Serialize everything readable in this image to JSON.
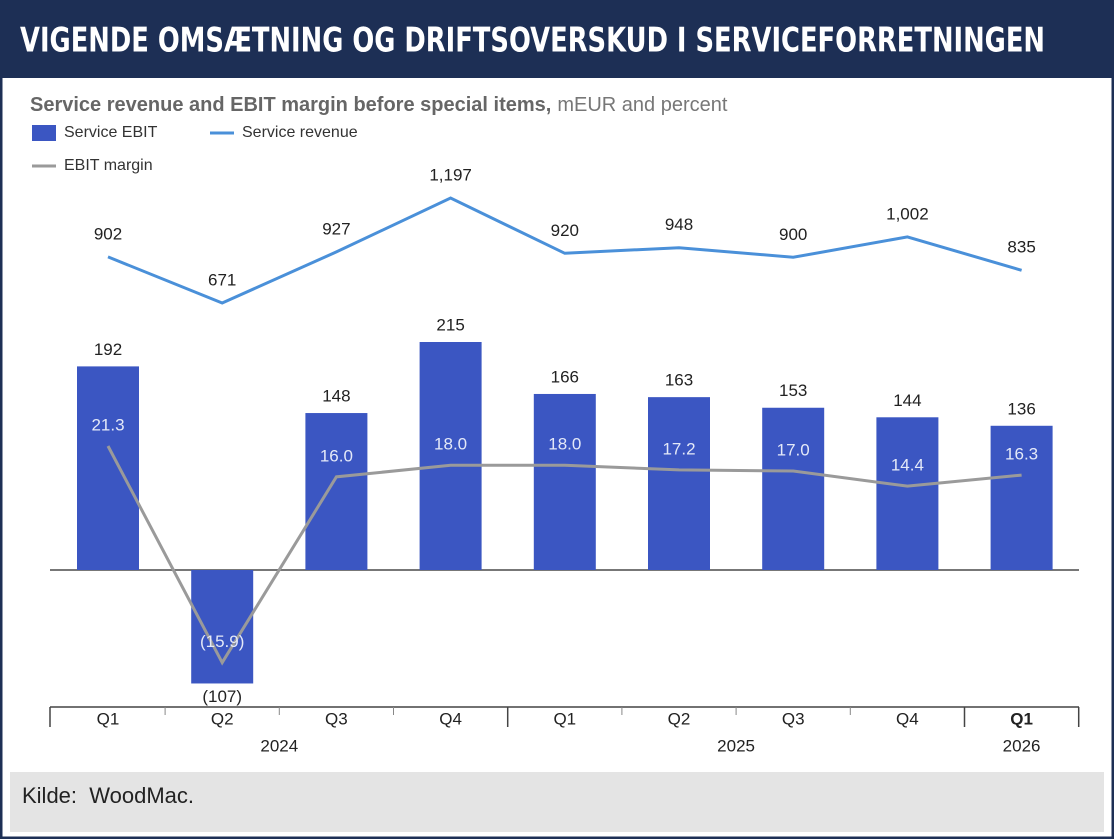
{
  "header": {
    "title": "VIGENDE OMSÆTNING OG DRIFTSOVERSKUD I  SERVICEFORRETNINGEN"
  },
  "chart_data": {
    "type": "combo",
    "title": "Service revenue and EBIT margin before special items,",
    "subtitle": "mEUR and percent",
    "groups": [
      {
        "label": "2024",
        "categories": [
          "Q1",
          "Q2",
          "Q3",
          "Q4"
        ]
      },
      {
        "label": "2025",
        "categories": [
          "Q1",
          "Q2",
          "Q3",
          "Q4"
        ]
      },
      {
        "label": "2026",
        "categories": [
          "Q1"
        ]
      }
    ],
    "series": [
      {
        "name": "Service EBIT",
        "type": "bar",
        "color": "#3b56c2",
        "values": [
          192,
          -107,
          148,
          215,
          166,
          163,
          153,
          144,
          136
        ],
        "value_labels": [
          "192",
          "(107)",
          "148",
          "215",
          "166",
          "163",
          "153",
          "144",
          "136"
        ]
      },
      {
        "name": "Service revenue",
        "type": "line",
        "color": "#4a90d9",
        "values": [
          902,
          671,
          927,
          1197,
          920,
          948,
          900,
          1002,
          835
        ],
        "value_labels": [
          "902",
          "671",
          "927",
          "1,197",
          "920",
          "948",
          "900",
          "1,002",
          "835"
        ]
      },
      {
        "name": "EBIT margin",
        "type": "line",
        "color": "#9a9a9a",
        "values": [
          21.3,
          -15.9,
          16.0,
          18.0,
          18.0,
          17.2,
          17.0,
          14.4,
          16.3
        ],
        "value_labels": [
          "21.3",
          "(15.9)",
          "16.0",
          "18.0",
          "18.0",
          "17.2",
          "17.0",
          "14.4",
          "16.3"
        ]
      }
    ]
  },
  "footer": {
    "source": "Kilde:  WoodMac."
  }
}
